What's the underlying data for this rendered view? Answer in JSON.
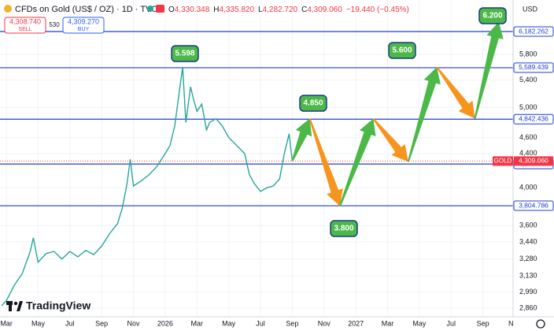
{
  "header": {
    "symbol": "CFDs on Gold (US$ / OZ) · 1D · TVC",
    "ohlc": [
      {
        "label": "O",
        "value": "4,330.348"
      },
      {
        "label": "H",
        "value": "4,335.820"
      },
      {
        "label": "L",
        "value": "4,282.720"
      },
      {
        "label": "C",
        "value": "4,309.060"
      }
    ],
    "change": "−19.440 (−0.45%)",
    "sell_price": "4,308.740",
    "sell_label": "SELL",
    "spread": "530",
    "buy_price": "4,309.270",
    "buy_label": "BUY",
    "currency": "USD",
    "logo": "TradingView"
  },
  "chart_data": {
    "type": "line",
    "log_scale": true,
    "grid": true,
    "color": "#26a69a",
    "x": [
      -0.3,
      0,
      0.5,
      1,
      1.5,
      1.7,
      2,
      2.5,
      3,
      3.5,
      4,
      4.5,
      5,
      5.5,
      6,
      6.5,
      7,
      7.3,
      7.6,
      7.8,
      8,
      8.5,
      9,
      9.5,
      10,
      10.3,
      10.6,
      10.9,
      11.1,
      11.3,
      11.6,
      11.8,
      12,
      12.3,
      12.6,
      12.8,
      13.2,
      13.6,
      14,
      14.5,
      15,
      15.3,
      15.6,
      16,
      16.4,
      16.8,
      17.2,
      17.5,
      17.8,
      18
    ],
    "values": [
      2880,
      2920,
      3050,
      3150,
      3350,
      3480,
      3250,
      3330,
      3350,
      3280,
      3350,
      3300,
      3360,
      3320,
      3400,
      3520,
      3620,
      3780,
      4050,
      4330,
      4020,
      4080,
      4150,
      4250,
      4400,
      4500,
      4750,
      5250,
      5598,
      4800,
      5300,
      5100,
      4950,
      5050,
      4700,
      4800,
      4850,
      4750,
      4600,
      4500,
      4400,
      4150,
      4050,
      3960,
      4000,
      4020,
      4100,
      4400,
      4650,
      4309
    ],
    "xlim": [
      -0.4,
      31.9
    ],
    "ylim": [
      2792,
      6750
    ],
    "xticks": [
      {
        "value": 0,
        "label": "Mar"
      },
      {
        "value": 2,
        "label": "May"
      },
      {
        "value": 4,
        "label": "Jul"
      },
      {
        "value": 6,
        "label": "Sep"
      },
      {
        "value": 8,
        "label": "Nov"
      },
      {
        "value": 10,
        "label": "2026"
      },
      {
        "value": 12,
        "label": "Mar"
      },
      {
        "value": 14,
        "label": "May"
      },
      {
        "value": 16,
        "label": "Jul"
      },
      {
        "value": 18,
        "label": "Sep"
      },
      {
        "value": 20,
        "label": "Nov"
      },
      {
        "value": 22,
        "label": "2027"
      },
      {
        "value": 24,
        "label": "Mar"
      },
      {
        "value": 26,
        "label": "May"
      },
      {
        "value": 28,
        "label": "Jul"
      },
      {
        "value": 30,
        "label": "Sep"
      },
      {
        "value": 32,
        "label": "Nov"
      }
    ],
    "yticks": [
      {
        "value": 5800,
        "label": "5,800"
      },
      {
        "value": 5400,
        "label": "5,400"
      },
      {
        "value": 5000,
        "label": "5,000"
      },
      {
        "value": 4600,
        "label": "4,600"
      },
      {
        "value": 4400,
        "label": "4,400"
      },
      {
        "value": 4000,
        "label": "4,000"
      },
      {
        "value": 3600,
        "label": "3,600"
      },
      {
        "value": 3440,
        "label": "3,440"
      },
      {
        "value": 3280,
        "label": "3,280"
      },
      {
        "value": 3130,
        "label": "3,130"
      },
      {
        "value": 2990,
        "label": "2,990"
      },
      {
        "value": 2860,
        "label": "2,860"
      }
    ],
    "levels": [
      {
        "value": 6182.262,
        "label": "6,182.262"
      },
      {
        "value": 5589.439,
        "label": "5,589.439"
      },
      {
        "value": 4842.436,
        "label": "4,842.436"
      },
      {
        "value": 4273.634,
        "label": "4,273.634"
      },
      {
        "value": 3804.786,
        "label": "3,804.786"
      }
    ],
    "level_color": "#1c3fd6",
    "current": {
      "name": "GOLD",
      "value": 4309.06,
      "label": "4,309.060",
      "color": "#f23645"
    },
    "forecast": {
      "x": [
        18,
        19.1,
        21,
        23.1,
        25.3,
        27.1,
        29.5,
        31
      ],
      "values": [
        4309,
        4850,
        3800,
        4850,
        4300,
        5600,
        4850,
        6350
      ],
      "up_color": "#4cb848",
      "down_color": "#f7941d"
    },
    "annotations": [
      "5.598",
      "4.850",
      "5.600",
      "6.200",
      "3.800"
    ]
  }
}
